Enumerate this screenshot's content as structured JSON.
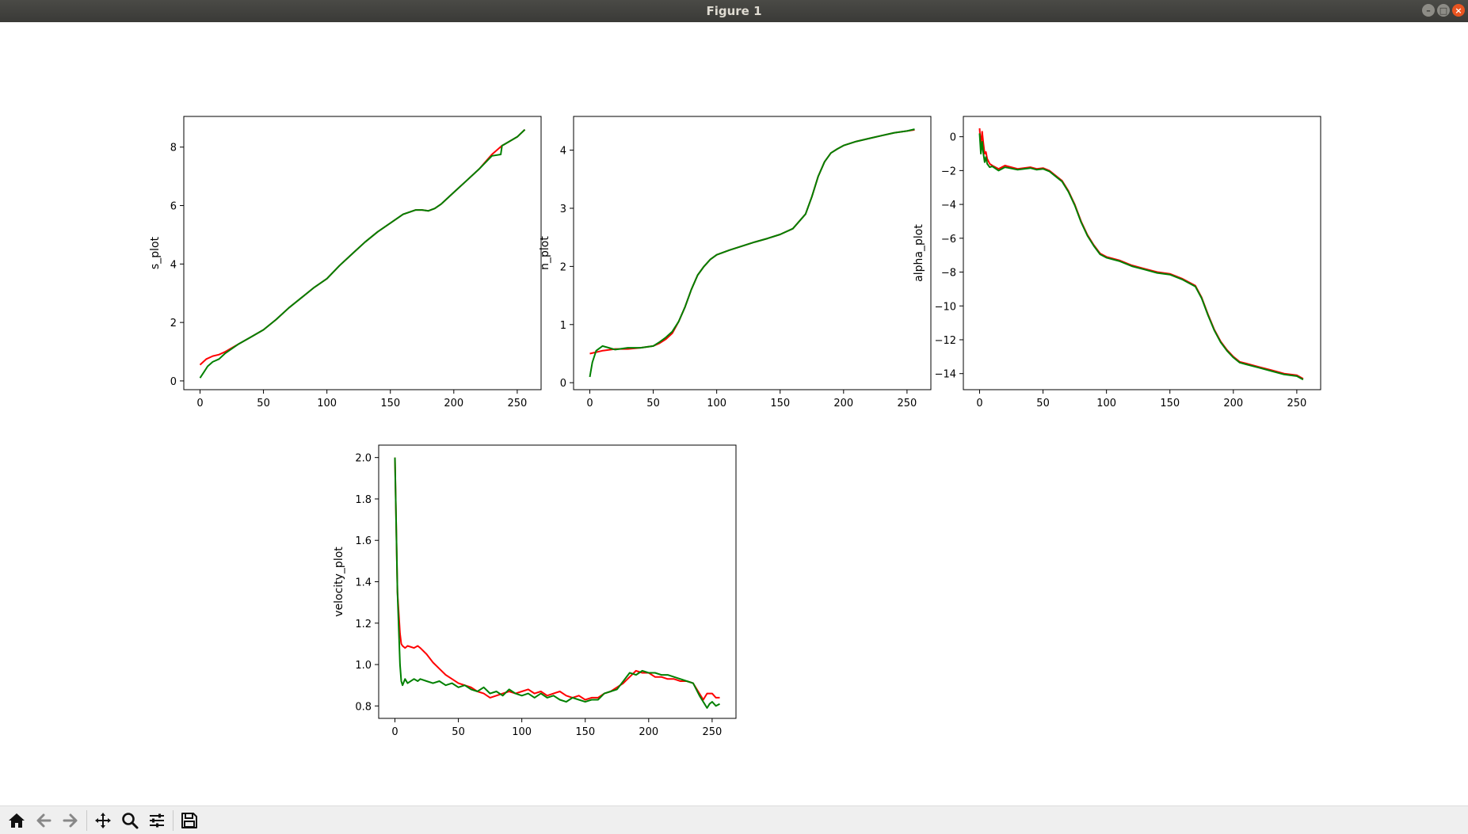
{
  "window": {
    "title": "Figure 1",
    "buttons": {
      "minimize_icon": "minimize-icon",
      "maximize_icon": "maximize-icon",
      "close_icon": "close-icon"
    }
  },
  "colors": {
    "reference": "#ff0000",
    "actual": "#008000",
    "axes": "#000000"
  },
  "toolbar": {
    "items": [
      {
        "name": "home-icon",
        "tooltip": "Reset original view"
      },
      {
        "name": "back-icon",
        "tooltip": "Back to previous view"
      },
      {
        "name": "forward-icon",
        "tooltip": "Forward to next view"
      },
      {
        "name": "pan-icon",
        "tooltip": "Pan axes"
      },
      {
        "name": "zoom-icon",
        "tooltip": "Zoom to rectangle"
      },
      {
        "name": "configure-subplots-icon",
        "tooltip": "Configure subplots"
      },
      {
        "name": "save-icon",
        "tooltip": "Save the figure"
      }
    ]
  },
  "chart_data": [
    {
      "type": "line",
      "title": "",
      "xlabel": "",
      "ylabel": "s_plot",
      "xlim": [
        -12.8,
        268.8
      ],
      "ylim": [
        -0.3,
        9.05
      ],
      "xticks": [
        0,
        50,
        100,
        150,
        200,
        250
      ],
      "yticks": [
        0,
        2,
        4,
        6,
        8
      ],
      "series": [
        {
          "color": "#ff0000",
          "x": [
            0,
            5,
            10,
            15,
            20,
            30,
            40,
            50,
            60,
            70,
            80,
            90,
            100,
            110,
            120,
            130,
            140,
            150,
            160,
            170,
            175,
            180,
            185,
            190,
            200,
            210,
            220,
            230,
            238,
            240,
            250,
            256
          ],
          "y": [
            0.55,
            0.75,
            0.85,
            0.9,
            1.0,
            1.25,
            1.5,
            1.75,
            2.1,
            2.5,
            2.85,
            3.2,
            3.5,
            3.95,
            4.35,
            4.75,
            5.1,
            5.4,
            5.7,
            5.85,
            5.85,
            5.82,
            5.9,
            6.05,
            6.45,
            6.85,
            7.25,
            7.75,
            8.05,
            8.1,
            8.35,
            8.6
          ]
        },
        {
          "color": "#008000",
          "x": [
            0,
            3,
            6,
            10,
            15,
            20,
            30,
            40,
            50,
            60,
            70,
            80,
            90,
            100,
            110,
            120,
            130,
            140,
            150,
            160,
            170,
            175,
            180,
            185,
            190,
            200,
            210,
            220,
            230,
            237,
            238,
            240,
            250,
            256
          ],
          "y": [
            0.1,
            0.3,
            0.5,
            0.65,
            0.75,
            0.95,
            1.25,
            1.5,
            1.75,
            2.1,
            2.5,
            2.85,
            3.2,
            3.5,
            3.95,
            4.35,
            4.75,
            5.1,
            5.4,
            5.7,
            5.85,
            5.85,
            5.82,
            5.9,
            6.05,
            6.45,
            6.85,
            7.25,
            7.7,
            7.75,
            8.05,
            8.1,
            8.35,
            8.6
          ]
        }
      ]
    },
    {
      "type": "line",
      "title": "",
      "xlabel": "",
      "ylabel": "n_plot",
      "xlim": [
        -12.8,
        268.8
      ],
      "ylim": [
        -0.12,
        4.58
      ],
      "xticks": [
        0,
        50,
        100,
        150,
        200,
        250
      ],
      "yticks": [
        0,
        1,
        2,
        3,
        4
      ],
      "series": [
        {
          "color": "#ff0000",
          "x": [
            0,
            10,
            20,
            30,
            40,
            50,
            55,
            60,
            65,
            70,
            75,
            80,
            85,
            90,
            95,
            100,
            110,
            120,
            130,
            140,
            150,
            160,
            170,
            175,
            180,
            185,
            190,
            195,
            200,
            210,
            220,
            230,
            240,
            250,
            256
          ],
          "y": [
            0.5,
            0.55,
            0.58,
            0.58,
            0.6,
            0.63,
            0.68,
            0.75,
            0.85,
            1.05,
            1.3,
            1.6,
            1.85,
            2.0,
            2.12,
            2.2,
            2.28,
            2.35,
            2.42,
            2.48,
            2.55,
            2.65,
            2.9,
            3.2,
            3.55,
            3.8,
            3.95,
            4.02,
            4.08,
            4.15,
            4.2,
            4.25,
            4.3,
            4.33,
            4.35
          ]
        },
        {
          "color": "#008000",
          "x": [
            0,
            2,
            5,
            10,
            15,
            20,
            30,
            40,
            50,
            55,
            60,
            65,
            70,
            75,
            80,
            85,
            90,
            95,
            100,
            110,
            120,
            130,
            140,
            150,
            160,
            170,
            175,
            180,
            185,
            190,
            195,
            200,
            210,
            220,
            230,
            240,
            250,
            256
          ],
          "y": [
            0.1,
            0.35,
            0.55,
            0.63,
            0.6,
            0.57,
            0.6,
            0.6,
            0.63,
            0.7,
            0.78,
            0.88,
            1.05,
            1.3,
            1.6,
            1.85,
            2.0,
            2.12,
            2.2,
            2.28,
            2.35,
            2.42,
            2.48,
            2.55,
            2.65,
            2.9,
            3.2,
            3.55,
            3.8,
            3.95,
            4.02,
            4.08,
            4.15,
            4.2,
            4.25,
            4.3,
            4.33,
            4.36
          ]
        }
      ]
    },
    {
      "type": "line",
      "title": "",
      "xlabel": "",
      "ylabel": "alpha_plot",
      "xlim": [
        -12.8,
        268.8
      ],
      "ylim": [
        -14.95,
        1.2
      ],
      "xticks": [
        0,
        50,
        100,
        150,
        200,
        250
      ],
      "yticks": [
        0,
        -2,
        -4,
        -6,
        -8,
        -10,
        -12,
        -14
      ],
      "series": [
        {
          "color": "#ff0000",
          "x": [
            0,
            1,
            2,
            3,
            4,
            5,
            6,
            8,
            10,
            15,
            20,
            30,
            40,
            45,
            50,
            55,
            60,
            65,
            70,
            75,
            80,
            85,
            90,
            95,
            100,
            110,
            120,
            130,
            140,
            150,
            160,
            170,
            175,
            180,
            185,
            190,
            195,
            200,
            205,
            210,
            220,
            230,
            240,
            250,
            255
          ],
          "y": [
            0.5,
            -0.6,
            0.3,
            -0.4,
            -1.0,
            -0.9,
            -1.3,
            -1.6,
            -1.7,
            -1.9,
            -1.7,
            -1.9,
            -1.8,
            -1.9,
            -1.85,
            -2.0,
            -2.3,
            -2.6,
            -3.2,
            -4.0,
            -5.0,
            -5.8,
            -6.4,
            -6.9,
            -7.1,
            -7.3,
            -7.6,
            -7.8,
            -8.0,
            -8.1,
            -8.4,
            -8.8,
            -9.5,
            -10.5,
            -11.4,
            -12.1,
            -12.6,
            -13.0,
            -13.3,
            -13.4,
            -13.6,
            -13.8,
            -14.0,
            -14.1,
            -14.3
          ]
        },
        {
          "color": "#008000",
          "x": [
            0,
            1,
            2,
            3,
            4,
            5,
            6,
            8,
            10,
            15,
            20,
            30,
            40,
            45,
            50,
            55,
            60,
            65,
            70,
            75,
            80,
            85,
            90,
            95,
            100,
            110,
            120,
            130,
            140,
            150,
            160,
            170,
            175,
            180,
            185,
            190,
            195,
            200,
            205,
            210,
            220,
            230,
            240,
            250,
            255
          ],
          "y": [
            0.2,
            -1.0,
            -0.3,
            -1.0,
            -1.5,
            -1.2,
            -1.6,
            -1.8,
            -1.75,
            -2.0,
            -1.8,
            -1.95,
            -1.85,
            -1.95,
            -1.9,
            -2.05,
            -2.35,
            -2.65,
            -3.25,
            -4.05,
            -5.05,
            -5.85,
            -6.45,
            -6.95,
            -7.15,
            -7.35,
            -7.65,
            -7.85,
            -8.05,
            -8.15,
            -8.45,
            -8.85,
            -9.55,
            -10.55,
            -11.45,
            -12.15,
            -12.65,
            -13.05,
            -13.35,
            -13.45,
            -13.65,
            -13.85,
            -14.05,
            -14.15,
            -14.35
          ]
        }
      ]
    },
    {
      "type": "line",
      "title": "",
      "xlabel": "",
      "ylabel": "velocity_plot",
      "xlim": [
        -12.8,
        268.8
      ],
      "ylim": [
        0.74,
        2.06
      ],
      "xticks": [
        0,
        50,
        100,
        150,
        200,
        250
      ],
      "yticks": [
        0.8,
        1.0,
        1.2,
        1.4,
        1.6,
        1.8,
        2.0
      ],
      "series": [
        {
          "color": "#ff0000",
          "x": [
            0,
            2,
            4,
            5,
            6,
            8,
            10,
            15,
            18,
            20,
            25,
            30,
            35,
            40,
            45,
            50,
            55,
            60,
            65,
            70,
            75,
            80,
            85,
            90,
            95,
            100,
            105,
            110,
            115,
            120,
            125,
            130,
            135,
            140,
            145,
            150,
            155,
            160,
            165,
            170,
            175,
            180,
            185,
            190,
            195,
            200,
            205,
            210,
            215,
            220,
            225,
            230,
            235,
            240,
            243,
            246,
            250,
            253,
            256
          ],
          "y": [
            2.0,
            1.35,
            1.15,
            1.1,
            1.09,
            1.08,
            1.09,
            1.08,
            1.09,
            1.08,
            1.05,
            1.01,
            0.98,
            0.95,
            0.93,
            0.91,
            0.9,
            0.89,
            0.87,
            0.86,
            0.84,
            0.85,
            0.86,
            0.87,
            0.86,
            0.87,
            0.88,
            0.86,
            0.87,
            0.85,
            0.86,
            0.87,
            0.85,
            0.84,
            0.85,
            0.83,
            0.84,
            0.84,
            0.86,
            0.87,
            0.89,
            0.91,
            0.94,
            0.97,
            0.96,
            0.96,
            0.94,
            0.94,
            0.93,
            0.93,
            0.92,
            0.92,
            0.91,
            0.86,
            0.83,
            0.86,
            0.86,
            0.84,
            0.84
          ]
        },
        {
          "color": "#008000",
          "x": [
            0,
            2,
            4,
            5,
            6,
            8,
            10,
            15,
            18,
            20,
            25,
            30,
            35,
            40,
            45,
            50,
            55,
            60,
            65,
            70,
            75,
            80,
            85,
            90,
            95,
            100,
            105,
            110,
            115,
            120,
            125,
            130,
            135,
            140,
            145,
            150,
            155,
            160,
            165,
            170,
            175,
            180,
            185,
            190,
            195,
            200,
            205,
            210,
            215,
            220,
            225,
            230,
            235,
            240,
            243,
            246,
            248,
            250,
            253,
            256
          ],
          "y": [
            2.0,
            1.35,
            1.0,
            0.92,
            0.9,
            0.93,
            0.91,
            0.93,
            0.92,
            0.93,
            0.92,
            0.91,
            0.92,
            0.9,
            0.91,
            0.89,
            0.9,
            0.88,
            0.87,
            0.89,
            0.86,
            0.87,
            0.85,
            0.88,
            0.86,
            0.85,
            0.86,
            0.84,
            0.86,
            0.84,
            0.85,
            0.83,
            0.82,
            0.84,
            0.83,
            0.82,
            0.83,
            0.83,
            0.86,
            0.87,
            0.88,
            0.92,
            0.96,
            0.95,
            0.97,
            0.96,
            0.96,
            0.95,
            0.95,
            0.94,
            0.93,
            0.92,
            0.91,
            0.85,
            0.82,
            0.79,
            0.81,
            0.82,
            0.8,
            0.81
          ]
        }
      ]
    }
  ]
}
